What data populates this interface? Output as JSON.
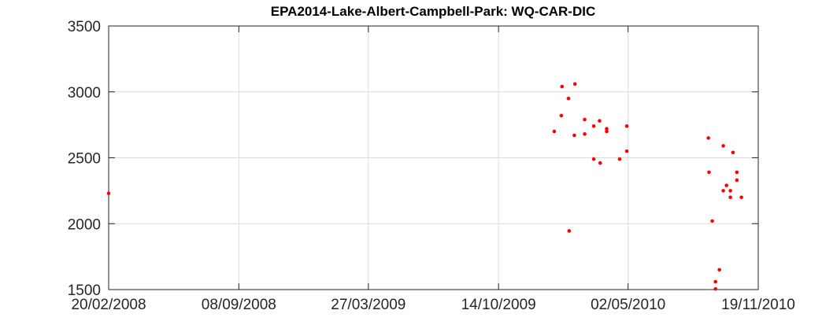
{
  "chart_data": {
    "type": "scatter",
    "title": "EPA2014-Lake-Albert-Campbell-Park: WQ-CAR-DIC",
    "xlabel": "",
    "ylabel": "",
    "x_ticks": [
      "20/02/2008",
      "08/09/2008",
      "27/03/2009",
      "14/10/2009",
      "02/05/2010",
      "19/11/2010"
    ],
    "xlim": [
      "2008-02-20",
      "2010-11-19"
    ],
    "y_ticks": [
      "1500",
      "2000",
      "2500",
      "3000",
      "3500"
    ],
    "ylim": [
      1500,
      3500
    ],
    "grid": true,
    "marker_color": "#ff0000",
    "points": [
      {
        "x": "2008-02-20",
        "y": 2230
      },
      {
        "x": "2010-01-08",
        "y": 2700
      },
      {
        "x": "2010-01-19",
        "y": 2820
      },
      {
        "x": "2010-01-20",
        "y": 3040
      },
      {
        "x": "2010-01-30",
        "y": 2950
      },
      {
        "x": "2010-01-31",
        "y": 1945
      },
      {
        "x": "2010-02-08",
        "y": 2670
      },
      {
        "x": "2010-02-09",
        "y": 3060
      },
      {
        "x": "2010-02-24",
        "y": 2680
      },
      {
        "x": "2010-02-24",
        "y": 2790
      },
      {
        "x": "2010-03-10",
        "y": 2740
      },
      {
        "x": "2010-03-10",
        "y": 2490
      },
      {
        "x": "2010-03-19",
        "y": 2780
      },
      {
        "x": "2010-03-20",
        "y": 2460
      },
      {
        "x": "2010-03-30",
        "y": 2720
      },
      {
        "x": "2010-03-30",
        "y": 2700
      },
      {
        "x": "2010-04-19",
        "y": 2490
      },
      {
        "x": "2010-04-30",
        "y": 2740
      },
      {
        "x": "2010-04-30",
        "y": 2550
      },
      {
        "x": "2010-09-03",
        "y": 2650
      },
      {
        "x": "2010-09-04",
        "y": 2390
      },
      {
        "x": "2010-09-09",
        "y": 2020
      },
      {
        "x": "2010-09-14",
        "y": 1560
      },
      {
        "x": "2010-09-14",
        "y": 1505
      },
      {
        "x": "2010-09-20",
        "y": 1650
      },
      {
        "x": "2010-09-26",
        "y": 2590
      },
      {
        "x": "2010-09-26",
        "y": 2250
      },
      {
        "x": "2010-10-01",
        "y": 2290
      },
      {
        "x": "2010-10-07",
        "y": 2250
      },
      {
        "x": "2010-10-07",
        "y": 2200
      },
      {
        "x": "2010-10-11",
        "y": 2540
      },
      {
        "x": "2010-10-17",
        "y": 2390
      },
      {
        "x": "2010-10-17",
        "y": 2330
      },
      {
        "x": "2010-10-24",
        "y": 2200
      }
    ]
  }
}
